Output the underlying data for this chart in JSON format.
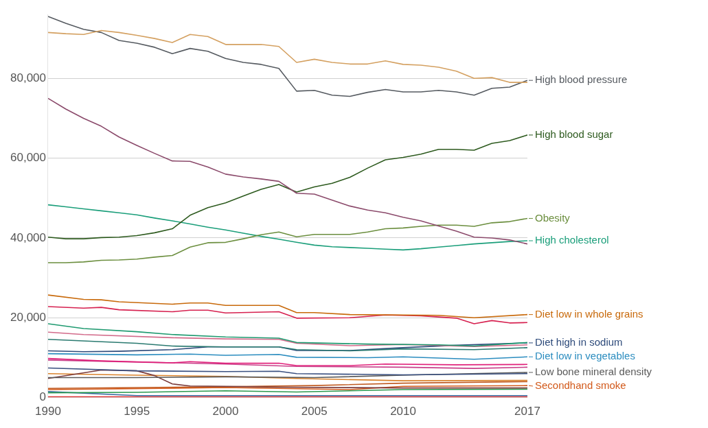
{
  "chart_data": {
    "type": "line",
    "x": [
      1990,
      1991,
      1992,
      1993,
      1994,
      1995,
      1996,
      1997,
      1998,
      1999,
      2000,
      2001,
      2002,
      2003,
      2004,
      2005,
      2006,
      2007,
      2008,
      2009,
      2010,
      2011,
      2012,
      2013,
      2014,
      2015,
      2016,
      2017
    ],
    "xlim": [
      1990,
      2017
    ],
    "xticks": [
      1990,
      1995,
      2000,
      2005,
      2010,
      2017
    ],
    "ylim": [
      0,
      96000
    ],
    "yticks": [
      0,
      {
        "value": 20000,
        "label": "20,000"
      },
      {
        "value": 40000,
        "label": "40,000"
      },
      {
        "value": 60000,
        "label": "60,000"
      },
      {
        "value": 80000,
        "label": "80,000"
      }
    ],
    "grid": "y",
    "legend": "right",
    "marker": "none",
    "line_style": "solid",
    "series": [
      {
        "color": "#d4a060",
        "values": [
          91500,
          91200,
          91000,
          92000,
          91500,
          90800,
          90000,
          89000,
          91000,
          90500,
          88500,
          88500,
          88500,
          88000,
          84000,
          84800,
          84000,
          83600,
          83600,
          84400,
          83500,
          83300,
          82800,
          81800,
          80000,
          80200,
          79000,
          79000
        ]
      },
      {
        "name": "High blood pressure",
        "color": "#555a60",
        "values": [
          95500,
          93800,
          92300,
          91500,
          89500,
          88800,
          87800,
          86200,
          87500,
          86800,
          85000,
          84000,
          83500,
          82500,
          76800,
          77000,
          75800,
          75500,
          76500,
          77200,
          76600,
          76600,
          77000,
          76600,
          75800,
          77500,
          77800,
          79500
        ]
      },
      {
        "color": "#8b4a6b",
        "values": [
          75000,
          72300,
          70000,
          68000,
          65300,
          63200,
          61200,
          59300,
          59200,
          57800,
          56000,
          55300,
          54800,
          54200,
          51200,
          51000,
          49500,
          48000,
          47000,
          46300,
          45200,
          44300,
          43000,
          41700,
          40200,
          40000,
          39500,
          38500
        ]
      },
      {
        "name": "High blood sugar",
        "color": "#2d5a1e",
        "values": [
          40200,
          39800,
          39800,
          40100,
          40200,
          40600,
          41300,
          42300,
          45700,
          47600,
          48800,
          50500,
          52200,
          53400,
          51500,
          52800,
          53700,
          55200,
          57500,
          59600,
          60200,
          61000,
          62200,
          62200,
          62000,
          63700,
          64400,
          65800
        ]
      },
      {
        "name": "Obesity",
        "color": "#6b8e3e",
        "values": [
          33800,
          33800,
          34000,
          34400,
          34500,
          34700,
          35200,
          35600,
          37700,
          38800,
          38900,
          39800,
          40800,
          41500,
          40300,
          40900,
          40900,
          40900,
          41500,
          42300,
          42500,
          42900,
          43200,
          43200,
          42900,
          43800,
          44100,
          44900
        ]
      },
      {
        "name": "High cholesterol",
        "color": "#1a9e7a",
        "values": [
          48300,
          47800,
          47300,
          46800,
          46300,
          45800,
          45000,
          44300,
          43500,
          42700,
          42000,
          41200,
          40400,
          39700,
          38900,
          38200,
          37800,
          37600,
          37400,
          37200,
          37000,
          37300,
          37700,
          38100,
          38500,
          38800,
          39100,
          39300
        ]
      },
      {
        "name": "Diet low in whole grains",
        "color": "#c8690a",
        "x": [
          1990,
          1992,
          1993,
          1994,
          1997,
          1998,
          1999,
          2000,
          2003,
          2004,
          2005,
          2007,
          2010,
          2012,
          2014,
          2017
        ],
        "values": [
          25700,
          24600,
          24500,
          24000,
          23400,
          23700,
          23700,
          23100,
          23100,
          21300,
          21300,
          20800,
          20700,
          20600,
          20000,
          20800
        ]
      },
      {
        "color": "#d6204f",
        "x": [
          1990,
          1992,
          1993,
          1994,
          1997,
          1998,
          1999,
          2000,
          2003,
          2004,
          2007,
          2009,
          2011,
          2013,
          2014,
          2015,
          2016,
          2017
        ],
        "values": [
          22800,
          22400,
          22600,
          22000,
          21500,
          21900,
          21900,
          21200,
          21500,
          19900,
          20000,
          20700,
          20500,
          19900,
          18500,
          19300,
          18700,
          18800
        ]
      },
      {
        "color": "#1f9a70",
        "x": [
          1990,
          1992,
          1995,
          1997,
          2000,
          2003,
          2004,
          2008,
          2012,
          2014,
          2017
        ],
        "values": [
          18500,
          17300,
          16500,
          15800,
          15200,
          14900,
          13800,
          13400,
          13200,
          12900,
          13800
        ]
      },
      {
        "color": "#d26a8a",
        "x": [
          1990,
          1992,
          1997,
          2000,
          2003,
          2004,
          2007,
          2010,
          2014,
          2017
        ],
        "values": [
          16400,
          15800,
          15000,
          14700,
          14600,
          13600,
          13000,
          13300,
          12800,
          13200
        ]
      },
      {
        "color": "#2a7a70",
        "x": [
          1990,
          1995,
          1997,
          2000,
          2003,
          2004,
          2007,
          2010,
          2014,
          2017
        ],
        "values": [
          14600,
          13600,
          12900,
          12700,
          12700,
          12000,
          11700,
          12200,
          12000,
          12500
        ]
      },
      {
        "name": "Diet high in sodium",
        "color": "#2d4a7a",
        "x": [
          1990,
          1992,
          1994,
          1997,
          1999,
          2000,
          2003,
          2004,
          2007,
          2010,
          2013,
          2017
        ],
        "values": [
          11700,
          11500,
          11600,
          12000,
          12700,
          12700,
          12700,
          11800,
          11800,
          12500,
          13100,
          13700
        ]
      },
      {
        "name": "Diet low in vegetables",
        "color": "#2a8cbf",
        "x": [
          1990,
          1995,
          1998,
          2000,
          2003,
          2004,
          2008,
          2010,
          2014,
          2017
        ],
        "values": [
          11000,
          10700,
          10900,
          10600,
          10800,
          10100,
          10000,
          10200,
          9600,
          10200
        ]
      },
      {
        "color": "#e0207a",
        "x": [
          1990,
          1993,
          1997,
          1998,
          2000,
          2003,
          2004,
          2007,
          2009,
          2013,
          2017
        ],
        "values": [
          9800,
          9200,
          8700,
          9000,
          8600,
          8600,
          8000,
          8000,
          8400,
          8200,
          8300
        ]
      },
      {
        "color": "#c8408a",
        "x": [
          1990,
          1995,
          2000,
          2004,
          2010,
          2014,
          2017
        ],
        "values": [
          9400,
          8900,
          8400,
          7800,
          7600,
          7300,
          7600
        ]
      },
      {
        "color": "#3a5080",
        "x": [
          1990,
          1995,
          2000,
          2003,
          2004,
          2010,
          2017
        ],
        "values": [
          7400,
          6700,
          6500,
          6600,
          6000,
          5700,
          6000
        ]
      },
      {
        "name": "Low bone mineral density",
        "color": "#5a5a5a",
        "x": [
          1990,
          1995,
          2000,
          2005,
          2010,
          2017
        ],
        "values": [
          5000,
          5000,
          5200,
          5000,
          5600,
          6300
        ]
      },
      {
        "color": "#7a3a3a",
        "x": [
          1990,
          1993,
          1995,
          1996,
          1997,
          1998,
          2000,
          2003,
          2010,
          2017
        ],
        "values": [
          4800,
          6900,
          6700,
          5500,
          3400,
          2900,
          2800,
          2600,
          2400,
          2400
        ]
      },
      {
        "color": "#d9822b",
        "x": [
          1990,
          1995,
          2000,
          2004,
          2010,
          2017
        ],
        "values": [
          6000,
          5600,
          5300,
          4800,
          4200,
          4300
        ]
      },
      {
        "color": "#c05a20",
        "x": [
          1990,
          2000,
          2005,
          2010,
          2017
        ],
        "values": [
          2300,
          2700,
          3000,
          3600,
          4000
        ]
      },
      {
        "name": "Secondhand smoke",
        "color": "#d2591a",
        "x": [
          1990,
          2000,
          2007,
          2010,
          2017
        ],
        "values": [
          2000,
          2500,
          2000,
          2800,
          3000
        ]
      },
      {
        "color": "#2a9a50",
        "x": [
          1990,
          1995,
          2000,
          2004,
          2010,
          2017
        ],
        "values": [
          1200,
          1300,
          1700,
          1400,
          2000,
          2100
        ]
      },
      {
        "color": "#3a6aa0",
        "x": [
          1990,
          1995,
          2017
        ],
        "values": [
          1500,
          500,
          500
        ]
      },
      {
        "color": "#e03030",
        "x": [
          1990,
          2017
        ],
        "values": [
          200,
          200
        ]
      }
    ]
  }
}
